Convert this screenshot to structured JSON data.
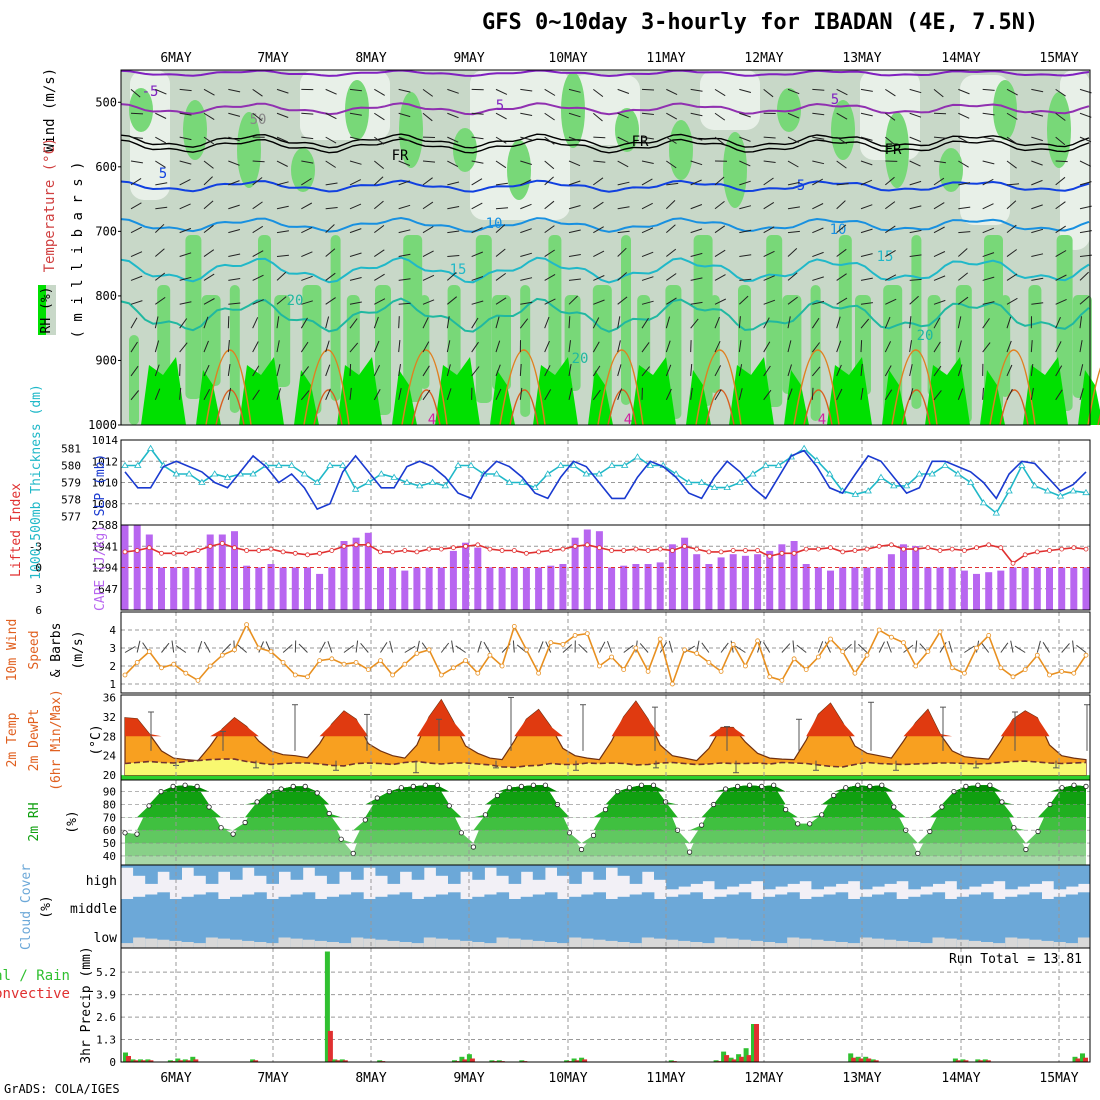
{
  "title": "GFS 0~10day 3-hourly for IBADAN (4E, 7.5N)",
  "credit": "GrADS: COLA/IGES",
  "day_labels": [
    "6MAY",
    "7MAY",
    "8MAY",
    "9MAY",
    "10MAY",
    "11MAY",
    "12MAY",
    "13MAY",
    "14MAY",
    "15MAY"
  ],
  "colors": {
    "rh_dark": "#00e000",
    "rh_mid": "#78d878",
    "rh_light": "#c8d8c8",
    "rh_pale": "#e8f0e8",
    "slp": "#1a3ad0",
    "thick": "#20b8c8",
    "cape": "#b866f0",
    "li": "#e03030",
    "wind": "#e89020",
    "temp_hi": "#e03a10",
    "temp_mid": "#f8a020",
    "dew": "#f8f870",
    "rh2m": "#10a010",
    "cloud": "#6ca8d8",
    "precip_total": "#30c030",
    "precip_conv": "#e03030"
  },
  "panel_labels": {
    "upper_wind": "Wind (m/s)",
    "upper_temp": "Temperature (°C)",
    "upper_rh": "RH (%)",
    "upper_unit": "( m i l l i b a r s )",
    "slp": "SLP (mb)",
    "thickness": "1000-500mb Thickness (dm)",
    "cape": "CAPE (J/kg)",
    "li": "Lifted Index",
    "wind10_a": "10m Wind",
    "wind10_b": "Speed",
    "wind10_c": "& Barbs",
    "wind10_unit": "(m/s)",
    "temp_a": "2m Temp",
    "temp_b": "2m DewPt",
    "temp_c": "(6hr Min/Max)",
    "temp_unit": "(°C)",
    "rh2m": "2m RH",
    "rh2m_unit": "(%)",
    "cloud": "Cloud Cover",
    "cloud_unit": "(%)",
    "cloud_high": "high",
    "cloud_middle": "middle",
    "cloud_low": "low",
    "precip_a": "Total / Rain",
    "precip_b": "Convective",
    "precip_y": "3hr Precip (mm)",
    "run_total": "Run Total = 13.81"
  },
  "contour_labels": [
    "-5",
    "5",
    "5",
    "FR",
    "FR",
    "FR",
    "5",
    "5",
    "10",
    "10",
    "15",
    "15",
    "20",
    "20",
    "20",
    "4",
    "4",
    "4",
    "50"
  ],
  "chart_data": [
    {
      "type": "heatmap",
      "name": "upper-air",
      "ylabel": "millibars",
      "yticks": [
        500,
        600,
        700,
        800,
        900,
        1000
      ],
      "ylim": [
        1000,
        450
      ],
      "contour_levels_c": [
        -5,
        0,
        5,
        10,
        15,
        20
      ],
      "rh_levels": [
        50,
        70,
        90
      ]
    },
    {
      "type": "line",
      "name": "slp-thickness",
      "series": [
        {
          "name": "SLP (mb)",
          "ylim": [
            1006,
            1014
          ],
          "yticks": [
            1008,
            1010,
            1012,
            1014
          ],
          "values": [
            1011,
            1009.5,
            1009.5,
            1011.5,
            1012,
            1011.5,
            1011,
            1010,
            1009.5,
            1011,
            1012.5,
            1011.5,
            1010,
            1010.8,
            1009.5,
            1007.5,
            1008,
            1011,
            1012.5,
            1011,
            1009.5,
            1009.5,
            1011.5,
            1012,
            1011.5,
            1010.5,
            1009,
            1008.5,
            1010.8,
            1012,
            1011.5,
            1010.5,
            1009,
            1008.5,
            1010.5,
            1012,
            1011.5,
            1010,
            1008.5,
            1008.5,
            1010.5,
            1012,
            1011.5,
            1010.5,
            1009,
            1008.5,
            1010.5,
            1012,
            1011,
            1009.5,
            1008.5,
            1010.5,
            1012.5,
            1013,
            1011.5,
            1009.5,
            1009,
            1010.8,
            1012.5,
            1012,
            1010.5,
            1009,
            1009.5,
            1012,
            1012,
            1011.5,
            1011,
            1010,
            1008.5,
            1010.8,
            1012,
            1011.8,
            1010.5,
            1009.2,
            1009.8,
            1011
          ]
        },
        {
          "name": "1000-500mb Thickness (dm)",
          "ylim": [
            576.5,
            581.5
          ],
          "yticks": [
            577,
            578,
            579,
            580,
            581
          ],
          "values": [
            580,
            580,
            581,
            580,
            579.5,
            579.5,
            579,
            579.5,
            579.3,
            579.5,
            579.5,
            580,
            580,
            580,
            579.5,
            579,
            580,
            580,
            578.6,
            579,
            579.5,
            579.3,
            579,
            578.8,
            579,
            578.8,
            580,
            580,
            579.5,
            579.5,
            579,
            579,
            578.7,
            579.5,
            580,
            580,
            579.5,
            579.5,
            580,
            580,
            580.5,
            580,
            580,
            579.5,
            579,
            579,
            578.7,
            578.7,
            579,
            579.5,
            580,
            580,
            580.5,
            581,
            580.3,
            579.5,
            578.5,
            578.3,
            578.5,
            579.3,
            578.8,
            578.8,
            579.5,
            579.5,
            580,
            579.5,
            579,
            577.8,
            577.2,
            578.5,
            580,
            578.8,
            578.5,
            578.2,
            578.5,
            578.4
          ]
        }
      ]
    },
    {
      "type": "bar",
      "name": "cape-li",
      "ylabel_left": "Lifted Index",
      "ylabel_right": "CAPE (J/kg)",
      "li_ticks": [
        -3,
        0,
        3,
        6
      ],
      "cape_ticks": [
        647,
        1294,
        1941,
        2588
      ],
      "cape_ylim": [
        0,
        2588
      ],
      "cape_values": [
        2588,
        2588,
        2300,
        1294,
        1294,
        1300,
        1294,
        2300,
        2300,
        2400,
        1350,
        1294,
        1400,
        1294,
        1294,
        1294,
        1100,
        1294,
        2100,
        2200,
        2350,
        1294,
        1294,
        1200,
        1294,
        1294,
        1294,
        1800,
        2050,
        1900,
        1300,
        1294,
        1294,
        1294,
        1294,
        1350,
        1400,
        2200,
        2450,
        2400,
        1294,
        1350,
        1400,
        1400,
        1450,
        2000,
        2200,
        1700,
        1400,
        1600,
        1700,
        1650,
        1700,
        1800,
        2000,
        2100,
        1400,
        1300,
        1200,
        1294,
        1300,
        1294,
        1300,
        1700,
        2000,
        1950,
        1300,
        1294,
        1300,
        1200,
        1100,
        1150,
        1200,
        1300,
        1294,
        1294,
        1294,
        1294,
        1294,
        1294
      ],
      "li_values": [
        -2.2,
        -2.4,
        -2.8,
        -2,
        -2,
        -2,
        -2.4,
        -3,
        -3.4,
        -2.8,
        -2.4,
        -2.4,
        -2.6,
        -2.2,
        -2,
        -1.8,
        -2,
        -2.4,
        -3,
        -3.2,
        -3.2,
        -2.2,
        -2.2,
        -2.4,
        -2.2,
        -2.6,
        -2.6,
        -2.8,
        -3,
        -3.2,
        -2.6,
        -2.4,
        -2.4,
        -2,
        -2.2,
        -2.4,
        -2.6,
        -3,
        -3.2,
        -2.8,
        -2.4,
        -2.4,
        -2.6,
        -2.4,
        -2.6,
        -2.4,
        -3,
        -2.6,
        -2.2,
        -2.2,
        -2.4,
        -2.4,
        -2.4,
        -1.6,
        -2,
        -2,
        -2.6,
        -2.6,
        -2.8,
        -2.2,
        -2.4,
        -2.6,
        -3,
        -3.2,
        -2.6,
        -2.6,
        -2.8,
        -2.4,
        -2.6,
        -2.4,
        -2.8,
        -3.2,
        -2.8,
        -0.6,
        -1.8,
        -2.2,
        -2.4,
        -2.6,
        -2.8,
        -2.6
      ]
    },
    {
      "type": "line",
      "name": "wind10",
      "ylabel": "m/s",
      "yticks": [
        1,
        2,
        3,
        4
      ],
      "ylim": [
        0.5,
        5
      ],
      "values": [
        1.5,
        2.2,
        2.8,
        1.9,
        2.1,
        1.6,
        1.2,
        2.0,
        2.6,
        2.9,
        4.3,
        3.0,
        2.8,
        2.2,
        1.5,
        1.4,
        2.3,
        2.4,
        2.1,
        2.2,
        1.8,
        2.3,
        1.5,
        2.1,
        2.7,
        2.9,
        1.5,
        1.9,
        2.3,
        1.6,
        2.6,
        2.0,
        4.2,
        2.9,
        1.6,
        3.3,
        3.2,
        3.7,
        3.8,
        2.0,
        2.5,
        1.8,
        3.0,
        1.7,
        3.5,
        1.0,
        2.9,
        2.7,
        2.2,
        1.7,
        3.2,
        2.0,
        3.4,
        1.4,
        1.2,
        2.4,
        1.8,
        2.5,
        3.5,
        2.8,
        1.6,
        2.6,
        4.0,
        3.6,
        3.3,
        2.0,
        2.8,
        3.9,
        1.9,
        1.6,
        3.0,
        3.7,
        1.9,
        1.4,
        1.8,
        2.6,
        1.5,
        1.7,
        1.6,
        2.6
      ]
    },
    {
      "type": "area",
      "name": "temp-dew",
      "ylabel": "°C",
      "yticks": [
        20,
        24,
        28,
        32,
        36
      ],
      "ylim": [
        19,
        36.5
      ],
      "temp": [
        31.8,
        31.6,
        28.5,
        25,
        23.5,
        23.2,
        23,
        26,
        29.5,
        31.8,
        30,
        27,
        25,
        24.2,
        24,
        23.6,
        26.5,
        30.5,
        33.2,
        31.5,
        26.5,
        25,
        24,
        23.5,
        26.2,
        32,
        35.5,
        31,
        26,
        24.5,
        23.5,
        23.2,
        27,
        31.5,
        33.5,
        30,
        25.5,
        24,
        23.5,
        23.2,
        27,
        32,
        35.2,
        31.5,
        26.2,
        24,
        23.5,
        23,
        25.5,
        29.8,
        29.8,
        26.8,
        24.5,
        23.5,
        23.3,
        23.2,
        27.2,
        32.5,
        34.8,
        30.8,
        26,
        24.5,
        24,
        23.5,
        27,
        30.8,
        33.5,
        28.5,
        25,
        23.8,
        23.5,
        23.3,
        27,
        31.5,
        33.2,
        31.8,
        26.2,
        24,
        23.5,
        23.2
      ],
      "dew": [
        22.4,
        22.6,
        22.8,
        22.6,
        22.5,
        22.8,
        23.0,
        23.2,
        23.3,
        23.3,
        22.8,
        22.5,
        22.2,
        22.4,
        22.5,
        22.5,
        22.3,
        22,
        21.9,
        22.4,
        22.5,
        22.4,
        22.2,
        22.6,
        22.8,
        22.5,
        22.3,
        22.5,
        22.5,
        22.3,
        22.1,
        21.7,
        21.6,
        21.9,
        22,
        22.4,
        22.2,
        22.2,
        22.5,
        22.4,
        22.5,
        22.4,
        22.1,
        22.2,
        22.5,
        22.6,
        22.4,
        22.2,
        22.3,
        22.5,
        22.4,
        22.4,
        22.5,
        22.3,
        22.6,
        22.5,
        22.4,
        22.1,
        21.8,
        21.7,
        22.2,
        22.6,
        22.4,
        22.3,
        22.2,
        22.3,
        22.4,
        22.5,
        22.5,
        22.4,
        22.3,
        22.4,
        22.6,
        22.8,
        22.9,
        22.7,
        22.5,
        22.4,
        22.5,
        22.6
      ],
      "max6hr": [
        33,
        29,
        34.5,
        32.5,
        31.5,
        36,
        34.5,
        34,
        30,
        31.5,
        35,
        34,
        33,
        34.5
      ],
      "min6hr": [
        22,
        21.5,
        21,
        20.5,
        21.5,
        21,
        21.5,
        20.5,
        21,
        21,
        21.5,
        21.5
      ]
    },
    {
      "type": "area",
      "name": "rh2m",
      "ylabel": "%",
      "yticks": [
        40,
        50,
        60,
        70,
        80,
        90
      ],
      "ylim": [
        33,
        99
      ],
      "values": [
        58,
        57,
        79,
        90,
        94,
        95,
        94,
        78,
        62,
        57,
        66,
        82,
        90,
        92,
        94,
        94,
        89,
        73,
        53,
        42,
        68,
        85,
        90,
        93,
        94,
        95,
        95,
        79,
        58,
        47,
        72,
        87,
        93,
        94,
        95,
        95,
        80,
        58,
        45,
        56,
        76,
        90,
        93,
        95,
        95,
        82,
        60,
        43,
        64,
        80,
        92,
        94,
        95,
        94,
        95,
        76,
        65,
        65,
        72,
        87,
        93,
        95,
        94,
        95,
        78,
        60,
        42,
        59,
        78,
        90,
        94,
        95,
        95,
        82,
        62,
        45,
        59,
        80,
        93,
        95,
        94
      ]
    },
    {
      "type": "bar",
      "name": "cloud",
      "ylabel": "%",
      "categories": [
        "high",
        "middle",
        "low"
      ]
    },
    {
      "type": "bar",
      "name": "precip",
      "ylabel": "3hr Precip (mm)",
      "yticks": [
        0,
        1.3,
        2.6,
        3.9,
        5.2
      ],
      "ylim": [
        0,
        6.6
      ],
      "run_total": 13.81,
      "total": [
        0.55,
        0.15,
        0.15,
        0.15,
        0,
        0,
        0.1,
        0.2,
        0.15,
        0.3,
        0,
        0,
        0,
        0,
        0,
        0,
        0,
        0.15,
        0,
        0,
        0,
        0,
        0,
        0,
        0,
        0,
        0,
        6.4,
        0.15,
        0.15,
        0,
        0,
        0,
        0,
        0.1,
        0,
        0,
        0,
        0,
        0,
        0,
        0,
        0,
        0,
        0.1,
        0.3,
        0.45,
        0,
        0,
        0.1,
        0.1,
        0,
        0,
        0.1,
        0,
        0,
        0,
        0,
        0,
        0.1,
        0.2,
        0.25,
        0,
        0,
        0,
        0,
        0,
        0,
        0,
        0,
        0,
        0,
        0,
        0.1,
        0,
        0,
        0,
        0,
        0,
        0.1,
        0.6,
        0.25,
        0.45,
        0.8,
        2.2,
        0,
        0,
        0,
        0,
        0,
        0,
        0,
        0,
        0,
        0,
        0,
        0,
        0.5,
        0.3,
        0.3,
        0.15,
        0,
        0,
        0,
        0,
        0,
        0,
        0,
        0,
        0,
        0,
        0.2,
        0.15,
        0,
        0.15,
        0.15,
        0,
        0,
        0,
        0,
        0,
        0,
        0,
        0,
        0,
        0,
        0,
        0.3,
        0.5
      ],
      "convective": [
        0.35,
        0.1,
        0.1,
        0.1,
        0,
        0,
        0.05,
        0.1,
        0.1,
        0.15,
        0,
        0,
        0,
        0,
        0,
        0,
        0,
        0.1,
        0,
        0,
        0,
        0,
        0,
        0,
        0,
        0,
        0,
        1.8,
        0.1,
        0.1,
        0,
        0,
        0,
        0,
        0.05,
        0,
        0,
        0,
        0,
        0,
        0,
        0,
        0,
        0,
        0.05,
        0.15,
        0.2,
        0,
        0,
        0.05,
        0.05,
        0,
        0,
        0.05,
        0,
        0,
        0,
        0,
        0,
        0.05,
        0.1,
        0.15,
        0,
        0,
        0,
        0,
        0,
        0,
        0,
        0,
        0,
        0,
        0,
        0.05,
        0,
        0,
        0,
        0,
        0,
        0.05,
        0.4,
        0.15,
        0.3,
        0.4,
        2.2,
        0,
        0,
        0,
        0,
        0,
        0,
        0,
        0,
        0,
        0,
        0,
        0,
        0.25,
        0.2,
        0.2,
        0.1,
        0,
        0,
        0,
        0,
        0,
        0,
        0,
        0,
        0,
        0,
        0.1,
        0.1,
        0,
        0.1,
        0.1,
        0,
        0,
        0,
        0,
        0,
        0,
        0,
        0,
        0,
        0,
        0,
        0.2,
        0.25
      ]
    }
  ]
}
